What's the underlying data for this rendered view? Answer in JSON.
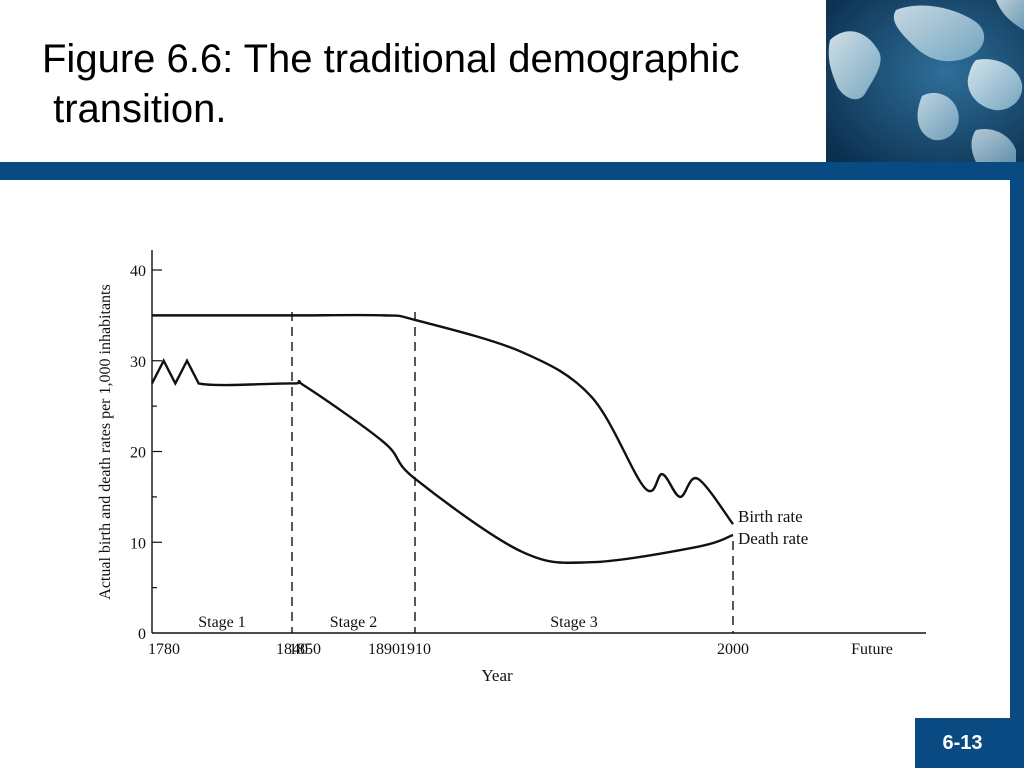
{
  "slide": {
    "title_line1": "Figure 6.6: The traditional demographic",
    "title_line2": " transition.",
    "page_number": "6-13",
    "accent_color": "#0a4a82",
    "decoration_icon": "world-map-icon"
  },
  "chart_data": {
    "type": "line",
    "xlabel": "Year",
    "ylabel": "Actual birth and death rates per 1,000 inhabitants",
    "ylim": [
      0,
      40
    ],
    "yticks": [
      0,
      10,
      20,
      30,
      40
    ],
    "xticks": [
      "1780",
      "1840",
      "1850",
      "1890",
      "1910",
      "2000",
      "Future"
    ],
    "stages": [
      {
        "label": "Stage 1",
        "from": "1780",
        "to": "1840"
      },
      {
        "label": "Stage 2",
        "from": "1850",
        "to": "1910"
      },
      {
        "label": "Stage 3",
        "from": "1910",
        "to": "2000"
      }
    ],
    "series": [
      {
        "name": "Birth rate",
        "x": [
          "1780",
          "1840",
          "1850",
          "1890",
          "1910",
          "1940",
          "1960",
          "1975",
          "1980",
          "1985",
          "1990",
          "2000"
        ],
        "values": [
          35,
          35,
          35,
          35,
          34.5,
          31,
          26,
          16,
          17.5,
          15,
          17,
          12
        ]
      },
      {
        "name": "Death rate",
        "x": [
          "1780",
          "1785",
          "1790",
          "1795",
          "1800",
          "1840",
          "1850",
          "1890",
          "1910",
          "1940",
          "1960",
          "1990",
          "2000"
        ],
        "values": [
          27.5,
          30,
          27.5,
          30,
          27.5,
          27.5,
          27.2,
          21,
          17,
          9,
          7.8,
          9.5,
          10.8
        ]
      }
    ],
    "grid": false
  }
}
